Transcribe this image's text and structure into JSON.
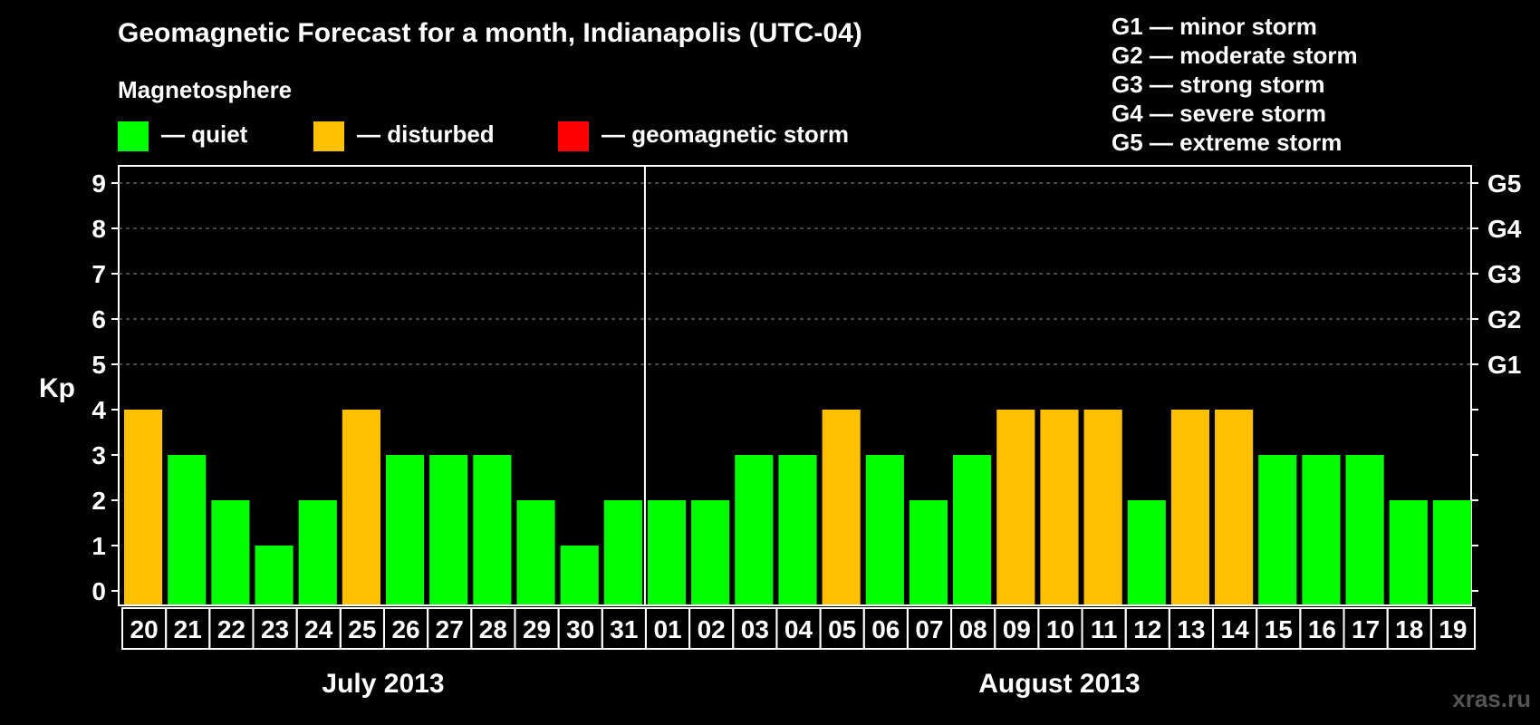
{
  "title": "Geomagnetic Forecast for a month, Indianapolis (UTC-04)",
  "subtitle": "Magnetosphere",
  "legend": [
    {
      "label": "— quiet",
      "color": "#00ff00"
    },
    {
      "label": "— disturbed",
      "color": "#ffc000"
    },
    {
      "label": "— geomagnetic storm",
      "color": "#ff0000"
    }
  ],
  "storm_legend": [
    "G1 — minor storm",
    "G2 — moderate storm",
    "G3 — strong storm",
    "G4 — severe storm",
    "G5 — extreme storm"
  ],
  "watermark": "xras.ru",
  "colors": {
    "quiet": "#00ff00",
    "disturbed": "#ffc000",
    "storm": "#ff0000",
    "background": "#000000",
    "axis": "#ffffff",
    "grid": "#888888"
  },
  "chart_data": {
    "type": "bar",
    "title": "Geomagnetic Forecast for a month, Indianapolis (UTC-04)",
    "ylabel": "Kp",
    "ylim": [
      0,
      9
    ],
    "yticks": [
      "0",
      "1",
      "2",
      "3",
      "4",
      "5",
      "6",
      "7",
      "8",
      "9"
    ],
    "right_ticks": [
      {
        "value": 5,
        "label": "G1"
      },
      {
        "value": 6,
        "label": "G2"
      },
      {
        "value": 7,
        "label": "G3"
      },
      {
        "value": 8,
        "label": "G4"
      },
      {
        "value": 9,
        "label": "G5"
      }
    ],
    "grid": "dashed at Kp 5-9",
    "months": [
      {
        "label": "July 2013",
        "days": 12
      },
      {
        "label": "August 2013",
        "days": 19
      }
    ],
    "categories": [
      "20",
      "21",
      "22",
      "23",
      "24",
      "25",
      "26",
      "27",
      "28",
      "29",
      "30",
      "31",
      "01",
      "02",
      "03",
      "04",
      "05",
      "06",
      "07",
      "08",
      "09",
      "10",
      "11",
      "12",
      "13",
      "14",
      "15",
      "16",
      "17",
      "18",
      "19"
    ],
    "values": [
      4,
      3,
      2,
      1,
      2,
      4,
      3,
      3,
      3,
      2,
      1,
      2,
      2,
      2,
      3,
      3,
      4,
      3,
      2,
      3,
      4,
      4,
      4,
      2,
      4,
      4,
      3,
      3,
      3,
      2,
      2
    ],
    "status": [
      "disturbed",
      "quiet",
      "quiet",
      "quiet",
      "quiet",
      "disturbed",
      "quiet",
      "quiet",
      "quiet",
      "quiet",
      "quiet",
      "quiet",
      "quiet",
      "quiet",
      "quiet",
      "quiet",
      "disturbed",
      "quiet",
      "quiet",
      "quiet",
      "disturbed",
      "disturbed",
      "disturbed",
      "quiet",
      "disturbed",
      "disturbed",
      "quiet",
      "quiet",
      "quiet",
      "quiet",
      "quiet"
    ]
  }
}
